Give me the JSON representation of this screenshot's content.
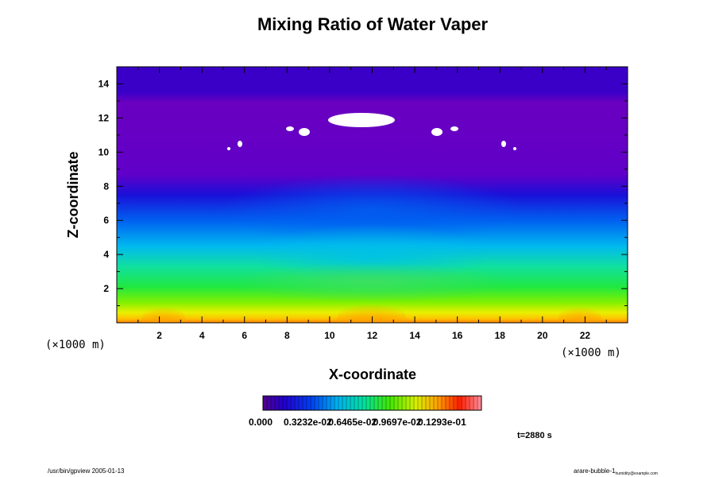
{
  "chart_data": {
    "type": "heatmap",
    "title": "Mixing Ratio of Water Vaper",
    "xlabel": "X-coordinate",
    "ylabel": "Z-coordinate",
    "x_unit": "(×1000 m)",
    "y_unit": "(×1000 m)",
    "xlim": [
      0,
      24
    ],
    "ylim": [
      0,
      15
    ],
    "x_ticks": [
      2,
      4,
      6,
      8,
      10,
      12,
      14,
      16,
      18,
      20,
      22
    ],
    "y_ticks": [
      2,
      4,
      6,
      8,
      10,
      12,
      14
    ],
    "x_tick_labels": [
      "2",
      "4",
      "6",
      "8",
      "10",
      "12",
      "14",
      "16",
      "18",
      "20",
      "22"
    ],
    "y_tick_labels": [
      "2",
      "4",
      "6",
      "8",
      "10",
      "12",
      "14"
    ],
    "colorbar": {
      "colormap": "rainbow (purple → blue → cyan → green → yellow → orange → red → pink)",
      "tick_labels": [
        "0.000",
        "0.3232e-02",
        "0.6465e-02",
        "0.9697e-02",
        "0.1293e-01"
      ],
      "tick_values": [
        0.0,
        0.003232,
        0.006465,
        0.009697,
        0.01293
      ]
    },
    "time_label": "t=2880 s",
    "description_of_field": "Water vapor mixing ratio decreasing with height; high values (yellow/orange/red) near the surface with warm bubbles rising at x≈2, 12, 22; near-zero purple above ~9 km with white (below-range) patches near z≈10–12"
  },
  "footer": {
    "left": "/usr/bin/gpview 2005-01-13",
    "right": "arare-bubble-1",
    "right_sub": "humidity@example.com"
  }
}
